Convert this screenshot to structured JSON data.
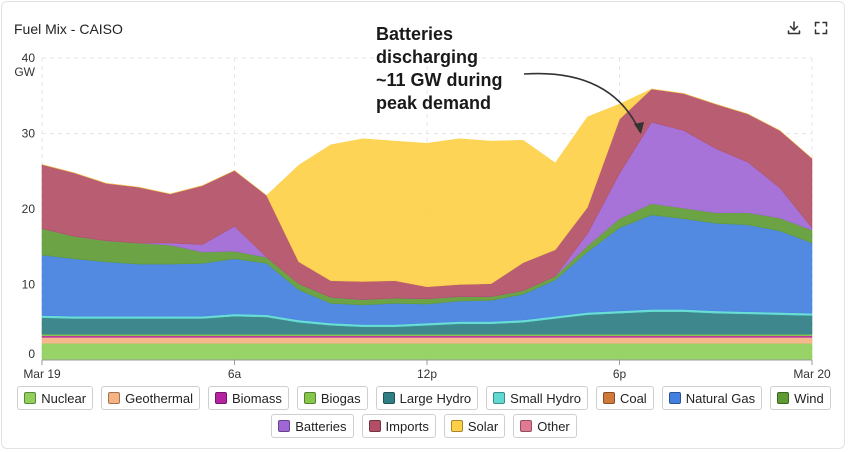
{
  "title": "Fuel Mix - CAISO",
  "toolbar": {
    "download_icon": "download-icon",
    "fullscreen_icon": "fullscreen-icon"
  },
  "annotation": {
    "lines": [
      "Batteries",
      "discharging",
      "~11 GW during",
      "peak demand"
    ]
  },
  "legend": [
    {
      "label": "Nuclear",
      "color": "#8fcf5a"
    },
    {
      "label": "Geothermal",
      "color": "#f5b383"
    },
    {
      "label": "Biomass",
      "color": "#b5239e"
    },
    {
      "label": "Biogas",
      "color": "#86c64a"
    },
    {
      "label": "Large Hydro",
      "color": "#2e7e83"
    },
    {
      "label": "Small Hydro",
      "color": "#5fd9d2"
    },
    {
      "label": "Coal",
      "color": "#cf7a3a"
    },
    {
      "label": "Natural Gas",
      "color": "#4380e0"
    },
    {
      "label": "Wind",
      "color": "#5f9b34"
    },
    {
      "label": "Batteries",
      "color": "#9f67d6"
    },
    {
      "label": "Imports",
      "color": "#b24f66"
    },
    {
      "label": "Solar",
      "color": "#fdd048"
    },
    {
      "label": "Other",
      "color": "#e07a92"
    }
  ],
  "chart_data": {
    "type": "area",
    "stacked": true,
    "x": [
      0,
      1,
      2,
      3,
      4,
      5,
      6,
      7,
      8,
      9,
      10,
      11,
      12,
      13,
      14,
      15,
      16,
      17,
      18,
      19,
      20,
      21,
      22,
      23,
      24
    ],
    "x_ticks": [
      {
        "x": 0,
        "label": "Mar 19"
      },
      {
        "x": 6,
        "label": "6a"
      },
      {
        "x": 12,
        "label": "12p"
      },
      {
        "x": 18,
        "label": "6p"
      },
      {
        "x": 24,
        "label": "Mar 20"
      }
    ],
    "ylabel": "GW",
    "ylim": [
      0,
      40
    ],
    "y_ticks": [
      0,
      10,
      20,
      30,
      40
    ],
    "grid": true,
    "series": [
      {
        "name": "Nuclear",
        "color": "#8fcf5a",
        "values": [
          2.2,
          2.2,
          2.2,
          2.2,
          2.2,
          2.2,
          2.2,
          2.2,
          2.2,
          2.2,
          2.2,
          2.2,
          2.2,
          2.2,
          2.2,
          2.2,
          2.2,
          2.2,
          2.2,
          2.2,
          2.2,
          2.2,
          2.2,
          2.2,
          2.2
        ]
      },
      {
        "name": "Geothermal",
        "color": "#f5b383",
        "values": [
          0.8,
          0.8,
          0.8,
          0.8,
          0.8,
          0.8,
          0.8,
          0.8,
          0.8,
          0.8,
          0.8,
          0.8,
          0.8,
          0.8,
          0.8,
          0.8,
          0.8,
          0.8,
          0.8,
          0.8,
          0.8,
          0.8,
          0.8,
          0.8,
          0.8
        ]
      },
      {
        "name": "Biomass",
        "color": "#b5239e",
        "values": [
          0.2,
          0.2,
          0.2,
          0.2,
          0.2,
          0.2,
          0.2,
          0.2,
          0.2,
          0.2,
          0.2,
          0.2,
          0.2,
          0.2,
          0.2,
          0.2,
          0.2,
          0.2,
          0.2,
          0.2,
          0.2,
          0.2,
          0.2,
          0.2,
          0.2
        ]
      },
      {
        "name": "Biogas",
        "color": "#86c64a",
        "values": [
          0.2,
          0.2,
          0.2,
          0.2,
          0.2,
          0.2,
          0.2,
          0.2,
          0.2,
          0.2,
          0.2,
          0.2,
          0.2,
          0.2,
          0.2,
          0.2,
          0.2,
          0.2,
          0.2,
          0.2,
          0.2,
          0.2,
          0.2,
          0.2,
          0.2
        ]
      },
      {
        "name": "Large Hydro",
        "color": "#2e7e83",
        "values": [
          2.2,
          2.1,
          2.1,
          2.1,
          2.1,
          2.1,
          2.4,
          2.3,
          1.6,
          1.2,
          1.0,
          1.0,
          1.2,
          1.4,
          1.4,
          1.6,
          2.1,
          2.6,
          2.8,
          3.0,
          3.0,
          2.8,
          2.7,
          2.6,
          2.5
        ]
      },
      {
        "name": "Small Hydro",
        "color": "#5fd9d2",
        "values": [
          0.3,
          0.3,
          0.3,
          0.3,
          0.3,
          0.3,
          0.3,
          0.3,
          0.3,
          0.3,
          0.3,
          0.3,
          0.3,
          0.3,
          0.3,
          0.3,
          0.3,
          0.3,
          0.3,
          0.3,
          0.3,
          0.3,
          0.3,
          0.3,
          0.3
        ]
      },
      {
        "name": "Coal",
        "color": "#cf7a3a",
        "values": [
          0,
          0,
          0,
          0,
          0,
          0,
          0,
          0,
          0,
          0,
          0,
          0,
          0,
          0,
          0,
          0,
          0,
          0,
          0,
          0,
          0,
          0,
          0,
          0,
          0
        ]
      },
      {
        "name": "Natural Gas",
        "color": "#4380e0",
        "values": [
          8.0,
          7.6,
          7.2,
          6.9,
          6.9,
          7.0,
          7.3,
          6.8,
          4.0,
          2.6,
          2.6,
          2.8,
          2.5,
          2.7,
          2.8,
          3.4,
          4.8,
          8.0,
          11.0,
          12.5,
          12.0,
          11.6,
          11.5,
          10.8,
          9.3
        ]
      },
      {
        "name": "Wind",
        "color": "#5f9b34",
        "values": [
          3.5,
          3.0,
          2.8,
          2.8,
          2.5,
          1.5,
          1.0,
          0.8,
          0.8,
          0.8,
          0.7,
          0.7,
          0.7,
          0.6,
          0.5,
          0.5,
          0.5,
          0.8,
          1.2,
          1.5,
          1.4,
          1.4,
          1.6,
          1.7,
          1.7
        ]
      },
      {
        "name": "Batteries",
        "color": "#9f67d6",
        "values": [
          0,
          0,
          0,
          0,
          0.3,
          1.0,
          3.3,
          0,
          0,
          0,
          0,
          0,
          0,
          0,
          0,
          0,
          0,
          1.6,
          6.0,
          10.8,
          10.3,
          8.5,
          6.7,
          4.0,
          0.3
        ]
      },
      {
        "name": "Imports",
        "color": "#b24f66",
        "values": [
          8.5,
          8.4,
          7.6,
          7.4,
          6.5,
          7.8,
          7.4,
          8.2,
          2.9,
          2.2,
          2.4,
          2.3,
          1.6,
          1.6,
          1.7,
          3.7,
          3.5,
          3.5,
          7.2,
          4.4,
          4.9,
          5.9,
          6.4,
          7.6,
          9.2
        ]
      },
      {
        "name": "Solar",
        "color": "#fdd048",
        "values": [
          0,
          0,
          0,
          0,
          0,
          0,
          0,
          0,
          12.8,
          18.0,
          18.9,
          18.5,
          19.0,
          19.3,
          18.9,
          16.2,
          11.5,
          12.0,
          2.0,
          0,
          0,
          0,
          0,
          0,
          0
        ]
      },
      {
        "name": "Other",
        "color": "#e07a92",
        "values": [
          0,
          0,
          0,
          0,
          0,
          0,
          0,
          0,
          0,
          0,
          0,
          0,
          0,
          0,
          0,
          0,
          0,
          0,
          0,
          0,
          0,
          0,
          0,
          0,
          0
        ]
      }
    ]
  }
}
